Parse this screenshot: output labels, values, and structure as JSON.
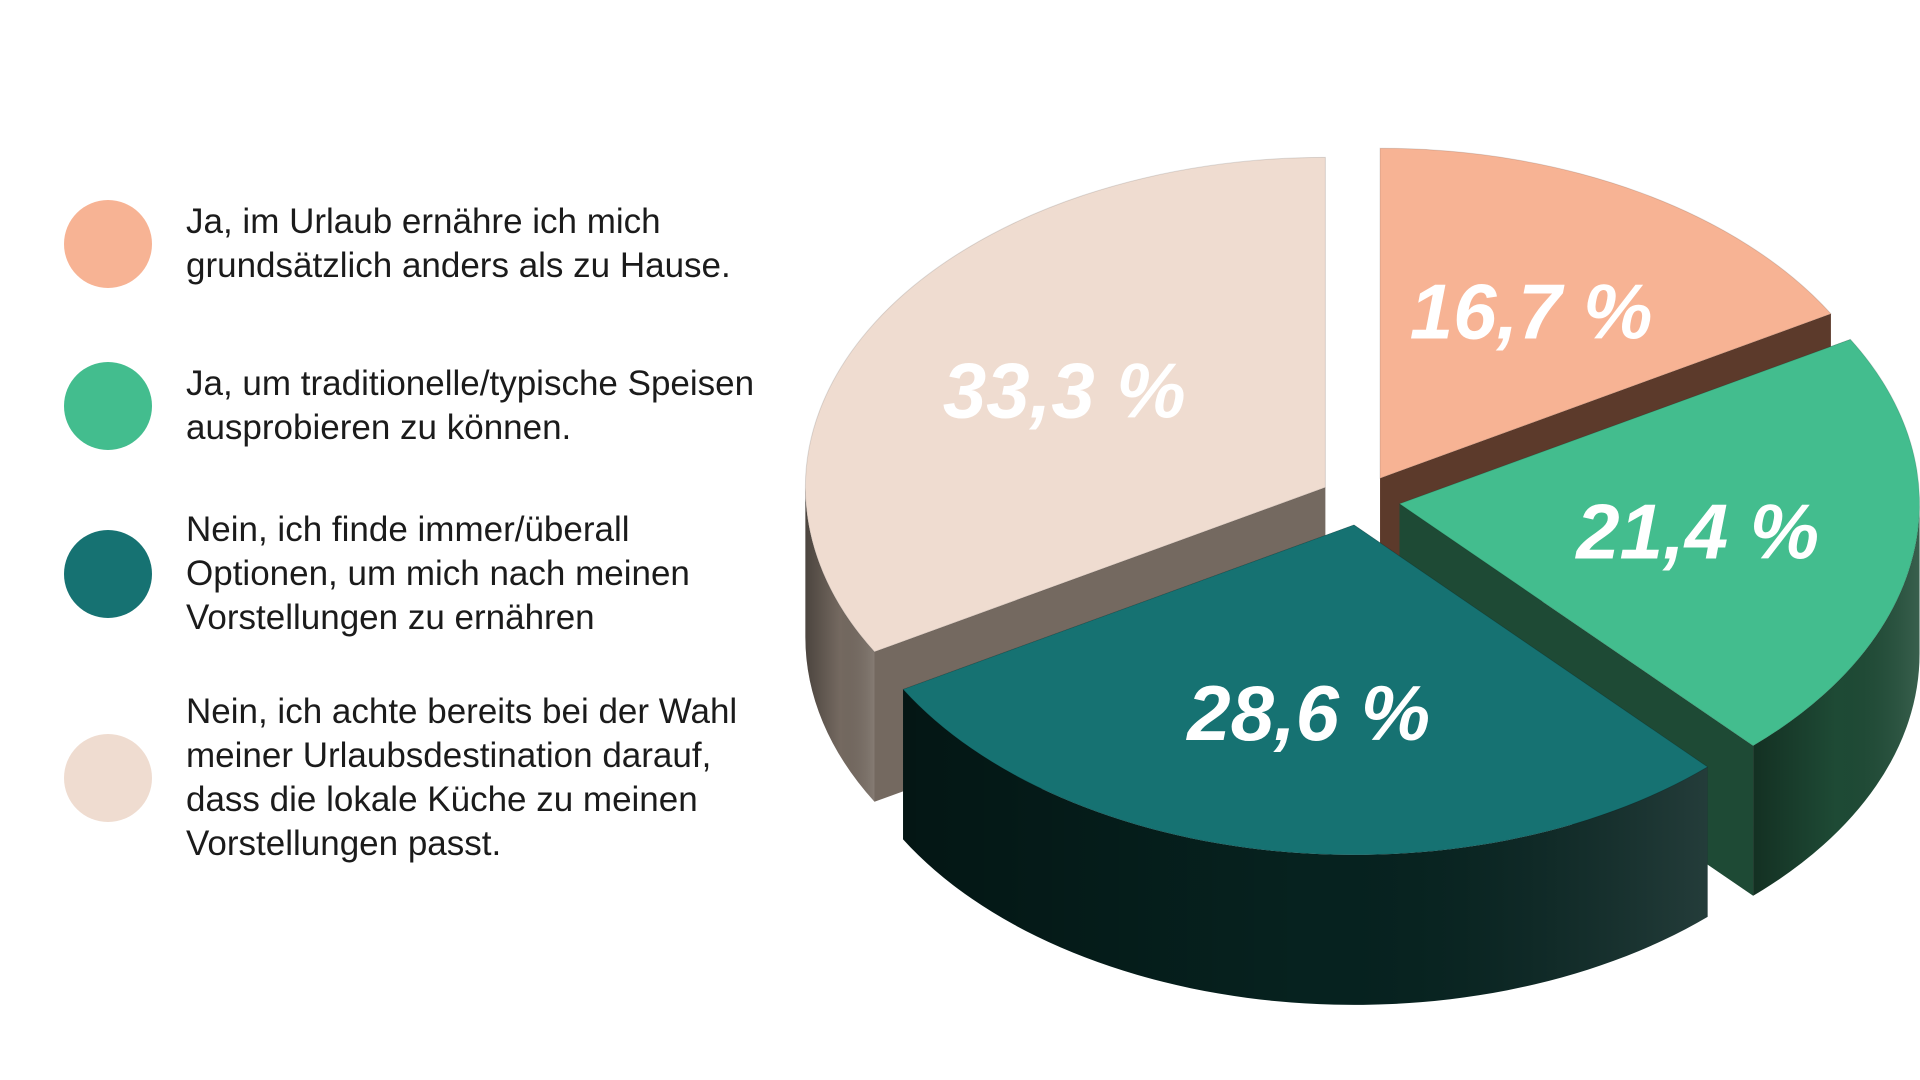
{
  "chart_data": {
    "type": "pie",
    "title": "",
    "legend_placement": "left",
    "slices": [
      {
        "label": "Ja, im Urlaub ernähre ich mich\ngrundsätzlich anders als zu Hause.",
        "value": 16.7,
        "value_label": "16,7 %",
        "color": "#F7B394",
        "side_color": "#5C3A2B"
      },
      {
        "label": "Ja, um traditionelle/typische Speisen\nausprobieren zu können.",
        "value": 21.4,
        "value_label": "21,4 %",
        "color": "#43BD8E",
        "side_color": "#1E4A35"
      },
      {
        "label": "Nein, ich finde immer/überall\nOptionen, um mich nach meinen\nVorstellungen zu ernähren",
        "value": 28.6,
        "value_label": "28,6 %",
        "color": "#167272",
        "side_color": "#06221F"
      },
      {
        "label": "Nein, ich achte bereits bei der Wahl\nmeiner Urlaubsdestination darauf,\ndass die lokale Küche zu meinen\nVorstellungen passt.",
        "value": 33.3,
        "value_label": "33,3 %",
        "color": "#EFDCD0",
        "side_color": "#746960"
      }
    ]
  }
}
